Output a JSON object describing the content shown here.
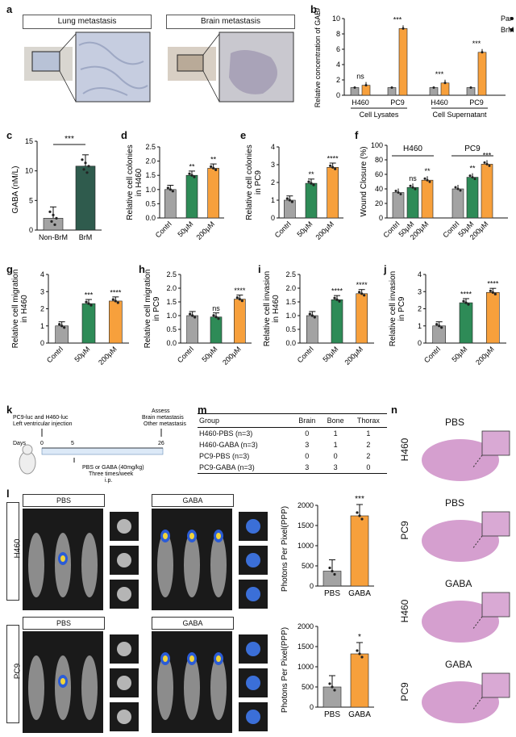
{
  "panels": {
    "a": {
      "letter": "a",
      "left_title": "Lung metastasis",
      "right_title": "Brain metastasis"
    },
    "b": {
      "letter": "b",
      "ylabel": "Relative concentration of GABA",
      "legend": [
        "Par",
        "BrM"
      ],
      "groups": [
        "H460",
        "PC9",
        "H460",
        "PC9"
      ],
      "sections": [
        "Cell Lysates",
        "Cell Supernatant"
      ],
      "sig": [
        "ns",
        "***",
        "***",
        "***"
      ],
      "par": [
        1.0,
        1.0,
        1.0,
        1.0
      ],
      "brm": [
        1.3,
        8.7,
        1.6,
        5.6
      ],
      "yticks": [
        "0",
        "2",
        "4",
        "6",
        "8",
        "10"
      ]
    },
    "c": {
      "letter": "c",
      "ylabel": "GABA (nM/L)",
      "cats": [
        "Non-BrM",
        "BrM"
      ],
      "values": [
        2.0,
        10.8
      ],
      "sig": "***",
      "yticks": [
        "0",
        "5",
        "10",
        "15"
      ]
    },
    "d": {
      "letter": "d",
      "ylabel": "Relative cell colonies in H460",
      "cats": [
        "Contrl",
        "50μM",
        "200μM"
      ],
      "values": [
        1.0,
        1.5,
        1.75
      ],
      "sig": [
        "",
        "**",
        "**"
      ],
      "yticks": [
        "0.0",
        "0.5",
        "1.0",
        "1.5",
        "2.0",
        "2.5"
      ]
    },
    "e": {
      "letter": "e",
      "ylabel": "Relative cell colonies in PC9",
      "cats": [
        "Contrl",
        "50μM",
        "200μM"
      ],
      "values": [
        1.0,
        1.95,
        2.85
      ],
      "sig": [
        "",
        "**",
        "****"
      ],
      "yticks": [
        "0",
        "1",
        "2",
        "3",
        "4"
      ]
    },
    "f": {
      "letter": "f",
      "ylabel": "Wound Closure (%)",
      "groups": [
        "H460",
        "PC9"
      ],
      "cats": [
        "Contrl",
        "50μM",
        "200μM",
        "Contrl",
        "50μM",
        "200μM"
      ],
      "values": [
        35,
        42,
        52,
        40,
        56,
        74
      ],
      "sig": [
        "",
        "ns",
        "**",
        "",
        "**",
        "***"
      ],
      "yticks": [
        "0",
        "20",
        "40",
        "60",
        "80",
        "100"
      ]
    },
    "g": {
      "letter": "g",
      "ylabel": "Relative cell migration in H460",
      "cats": [
        "Contrl",
        "50μM",
        "200μM"
      ],
      "values": [
        1.0,
        2.3,
        2.45
      ],
      "sig": [
        "",
        "***",
        "****"
      ],
      "yticks": [
        "0",
        "1",
        "2",
        "3",
        "4"
      ]
    },
    "h": {
      "letter": "h",
      "ylabel": "Relative cell migration in PC9",
      "cats": [
        "Contrl",
        "50μM",
        "200μM"
      ],
      "values": [
        1.0,
        0.95,
        1.6
      ],
      "sig": [
        "",
        "ns",
        "****"
      ],
      "yticks": [
        "0.0",
        "0.5",
        "1.0",
        "1.5",
        "2.0",
        "2.5"
      ]
    },
    "i": {
      "letter": "i",
      "ylabel": "Relative cell invasion in H460",
      "cats": [
        "Contrl",
        "50μM",
        "200μM"
      ],
      "values": [
        1.0,
        1.58,
        1.8
      ],
      "sig": [
        "",
        "****",
        "****"
      ],
      "yticks": [
        "0.0",
        "0.5",
        "1.0",
        "1.5",
        "2.0",
        "2.5"
      ]
    },
    "j": {
      "letter": "j",
      "ylabel": "Relative cell invasion in PC9",
      "cats": [
        "Contrl",
        "50μM",
        "200μM"
      ],
      "values": [
        1.0,
        2.35,
        2.95
      ],
      "sig": [
        "",
        "****",
        "****"
      ],
      "yticks": [
        "0",
        "1",
        "2",
        "3",
        "4"
      ]
    },
    "k": {
      "letter": "k",
      "cells": "PC9-luc and H460-luc",
      "inj": "Left ventricular injection",
      "assess1": "Assess",
      "assess2": "Brain metastasis",
      "assess3": "Other metastasis",
      "days": "Days",
      "d0": "0",
      "d5": "5",
      "d26": "26",
      "treat1": "PBS or GABA (40mg/kg)",
      "treat2": "Three times/week",
      "treat3": "i.p."
    },
    "m": {
      "letter": "m",
      "headers": [
        "Group",
        "Brain",
        "Bone",
        "Thorax"
      ],
      "rows": [
        [
          "H460-PBS (n=3)",
          "0",
          "1",
          "1"
        ],
        [
          "H460-GABA (n=3)",
          "3",
          "1",
          "2"
        ],
        [
          "PC9-PBS (n=3)",
          "0",
          "0",
          "2"
        ],
        [
          "PC9-GABA (n=3)",
          "3",
          "3",
          "0"
        ]
      ]
    },
    "n": {
      "letter": "n",
      "labels": [
        {
          "top": "PBS",
          "side": "H460"
        },
        {
          "top": "PBS",
          "side": "PC9"
        },
        {
          "top": "GABA",
          "side": "H460"
        },
        {
          "top": "GABA",
          "side": "PC9"
        }
      ]
    },
    "l": {
      "letter": "l",
      "row_labels": [
        "H460",
        "PC9"
      ],
      "group_labels": [
        "PBS",
        "GABA"
      ],
      "ylabel": "Photons Per Pixel(PPP)",
      "top": {
        "cats": [
          "PBS",
          "GABA"
        ],
        "values": [
          370,
          1740
        ],
        "sig": "***",
        "yticks": [
          "0",
          "500",
          "1000",
          "1500",
          "2000"
        ]
      },
      "bottom": {
        "cats": [
          "PBS",
          "GABA"
        ],
        "values": [
          500,
          1320
        ],
        "sig": "*",
        "yticks": [
          "0",
          "500",
          "1000",
          "1500",
          "2000"
        ]
      }
    }
  },
  "colors": {
    "grey": "#a3a3a3",
    "green": "#2e8b57",
    "orange": "#f7a03c",
    "darkgreen": "#2f5b4d",
    "he": "#c77fbf"
  }
}
